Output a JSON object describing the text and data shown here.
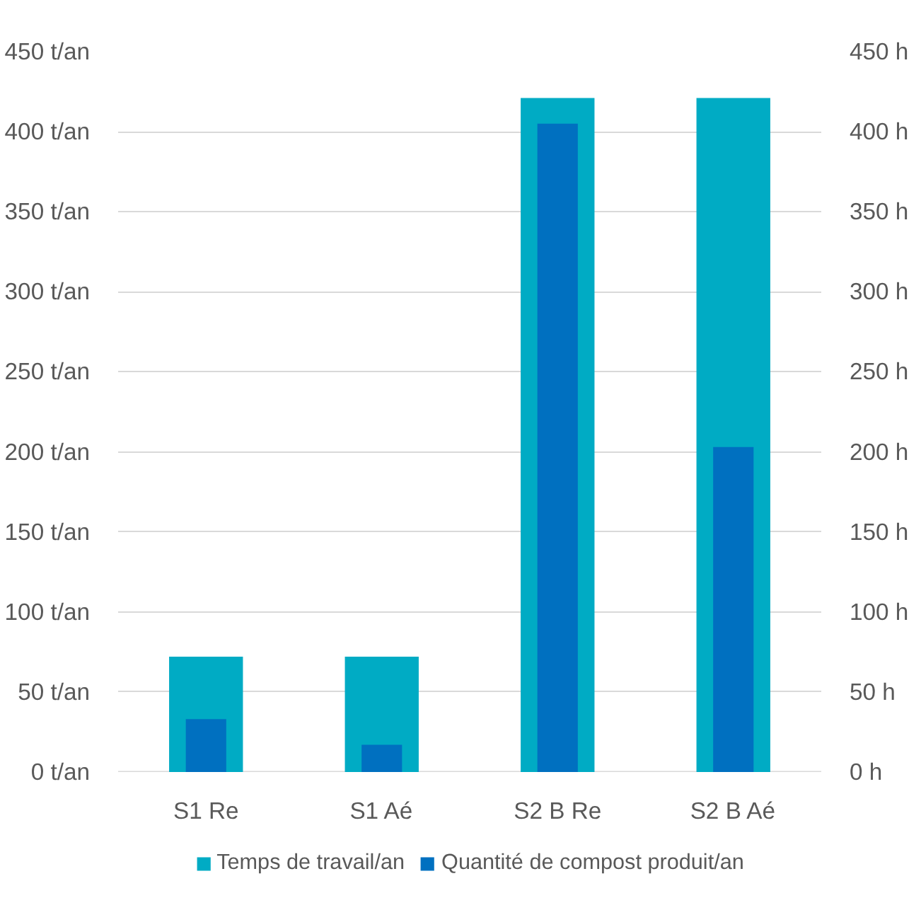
{
  "chart_data": {
    "type": "bar",
    "categories": [
      "S1 Re",
      "S1 Aé",
      "S2 B Re",
      "S2 B Aé"
    ],
    "series": [
      {
        "name": "Temps de travail/an",
        "color": "#00abc4",
        "values": [
          72,
          72,
          421,
          421
        ],
        "axis": "y2"
      },
      {
        "name": "Quantité de compost produit/an",
        "color": "#0070c0",
        "values": [
          33,
          17,
          405,
          203
        ],
        "axis": "y"
      }
    ],
    "ylim": [
      0,
      450
    ],
    "yticks": [
      {
        "value": 0,
        "label": "0 t/an"
      },
      {
        "value": 50,
        "label": "50 t/an"
      },
      {
        "value": 100,
        "label": "100 t/an"
      },
      {
        "value": 150,
        "label": "150 t/an"
      },
      {
        "value": 200,
        "label": "200 t/an"
      },
      {
        "value": 250,
        "label": "250 t/an"
      },
      {
        "value": 300,
        "label": "300 t/an"
      },
      {
        "value": 350,
        "label": "350 t/an"
      },
      {
        "value": 400,
        "label": "400 t/an"
      },
      {
        "value": 450,
        "label": "450 t/an"
      }
    ],
    "y2lim": [
      0,
      450
    ],
    "y2ticks": [
      {
        "value": 0,
        "label": "0 h"
      },
      {
        "value": 50,
        "label": "50 h"
      },
      {
        "value": 100,
        "label": "100 h"
      },
      {
        "value": 150,
        "label": "150 h"
      },
      {
        "value": 200,
        "label": "200 h"
      },
      {
        "value": 250,
        "label": "250 h"
      },
      {
        "value": 300,
        "label": "300 h"
      },
      {
        "value": 350,
        "label": "350 h"
      },
      {
        "value": 400,
        "label": "400 h"
      },
      {
        "value": 450,
        "label": "450 h"
      }
    ],
    "grid": "y",
    "legend": "bottom"
  }
}
